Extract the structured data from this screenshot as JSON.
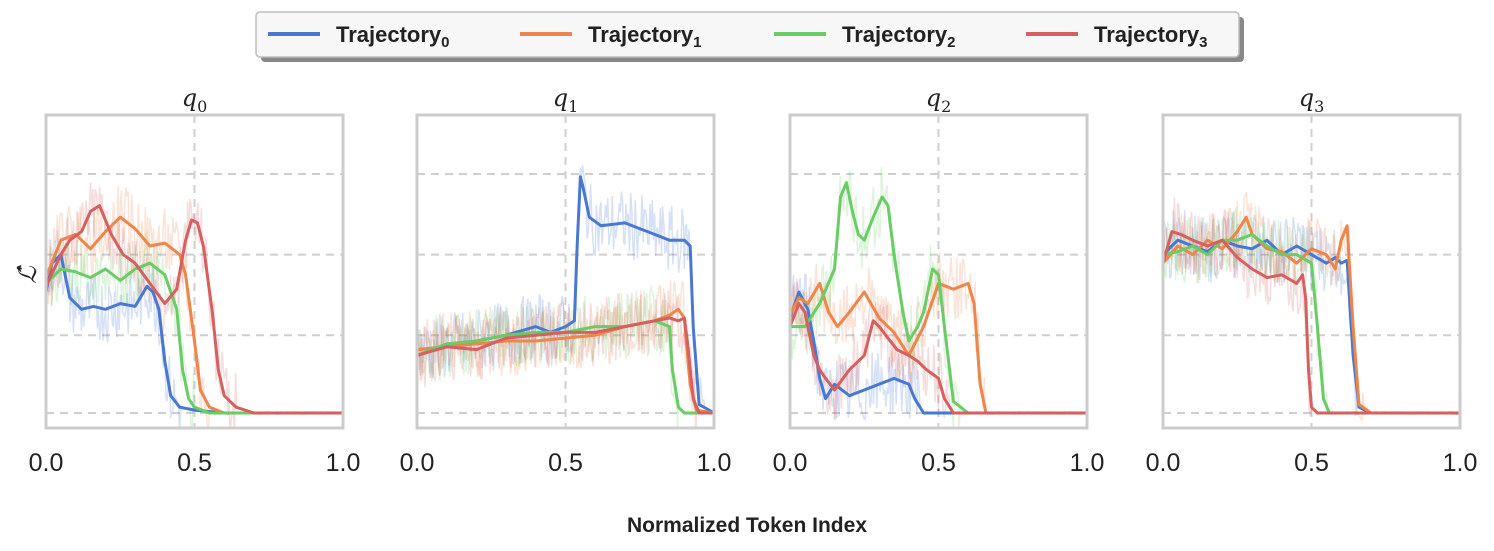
{
  "chart_data": {
    "type": "line",
    "x_axis_label": "Normalized Token Index",
    "y_axis_label": "ℒ̂",
    "x_ticks": [
      "0.0",
      "0.5",
      "1.0"
    ],
    "xlim": [
      0,
      1
    ],
    "ylim": [
      0,
      1
    ],
    "grid": "dashed",
    "legend": {
      "placement": "top-center",
      "entries": [
        {
          "base": "Trajectory",
          "sub": "0",
          "color": "#4878d0"
        },
        {
          "base": "Trajectory",
          "sub": "1",
          "color": "#ee854a"
        },
        {
          "base": "Trajectory",
          "sub": "2",
          "color": "#6acc64"
        },
        {
          "base": "Trajectory",
          "sub": "3",
          "color": "#d65f5f"
        }
      ]
    },
    "panels": [
      {
        "name": "q0",
        "title_base": "q",
        "title_sub": "0",
        "series": [
          {
            "name": "Trajectory0",
            "x": [
              0,
              0.02,
              0.05,
              0.08,
              0.12,
              0.16,
              0.2,
              0.25,
              0.3,
              0.34,
              0.36,
              0.38,
              0.4,
              0.42,
              0.45,
              0.5,
              0.6,
              0.8,
              1.0
            ],
            "y": [
              0.42,
              0.52,
              0.55,
              0.4,
              0.36,
              0.37,
              0.36,
              0.38,
              0.37,
              0.44,
              0.42,
              0.36,
              0.18,
              0.06,
              0.02,
              0.01,
              0.0,
              0.0,
              0.0
            ]
          },
          {
            "name": "Trajectory1",
            "x": [
              0,
              0.05,
              0.1,
              0.15,
              0.2,
              0.25,
              0.3,
              0.35,
              0.4,
              0.45,
              0.47,
              0.5,
              0.52,
              0.55,
              0.6,
              0.8,
              1.0
            ],
            "y": [
              0.47,
              0.6,
              0.62,
              0.57,
              0.63,
              0.68,
              0.64,
              0.58,
              0.59,
              0.55,
              0.48,
              0.25,
              0.08,
              0.02,
              0.0,
              0.0,
              0.0
            ]
          },
          {
            "name": "Trajectory2",
            "x": [
              0,
              0.05,
              0.1,
              0.15,
              0.2,
              0.25,
              0.3,
              0.35,
              0.4,
              0.44,
              0.46,
              0.48,
              0.5,
              0.55,
              0.6,
              0.8,
              1.0
            ],
            "y": [
              0.45,
              0.5,
              0.49,
              0.47,
              0.5,
              0.46,
              0.5,
              0.52,
              0.48,
              0.36,
              0.15,
              0.05,
              0.02,
              0.0,
              0.0,
              0.0,
              0.0
            ]
          },
          {
            "name": "Trajectory3",
            "x": [
              0,
              0.05,
              0.08,
              0.12,
              0.15,
              0.18,
              0.22,
              0.26,
              0.3,
              0.35,
              0.4,
              0.44,
              0.47,
              0.49,
              0.51,
              0.53,
              0.56,
              0.58,
              0.6,
              0.64,
              0.7,
              0.8,
              1.0
            ],
            "y": [
              0.44,
              0.55,
              0.6,
              0.63,
              0.7,
              0.72,
              0.62,
              0.55,
              0.52,
              0.45,
              0.38,
              0.43,
              0.6,
              0.67,
              0.66,
              0.58,
              0.35,
              0.15,
              0.06,
              0.02,
              0.0,
              0.0,
              0.0
            ]
          }
        ]
      },
      {
        "name": "q1",
        "title_base": "q",
        "title_sub": "1",
        "series": [
          {
            "name": "Trajectory0",
            "x": [
              0,
              0.1,
              0.2,
              0.3,
              0.4,
              0.45,
              0.5,
              0.53,
              0.54,
              0.55,
              0.56,
              0.58,
              0.62,
              0.7,
              0.8,
              0.85,
              0.9,
              0.92,
              0.93,
              0.95,
              1.0
            ],
            "y": [
              0.22,
              0.23,
              0.25,
              0.27,
              0.3,
              0.28,
              0.3,
              0.32,
              0.6,
              0.82,
              0.78,
              0.68,
              0.65,
              0.66,
              0.62,
              0.6,
              0.6,
              0.58,
              0.3,
              0.03,
              0.0
            ]
          },
          {
            "name": "Trajectory1",
            "x": [
              0,
              0.1,
              0.2,
              0.3,
              0.4,
              0.5,
              0.6,
              0.7,
              0.8,
              0.85,
              0.88,
              0.9,
              0.92,
              0.94,
              1.0
            ],
            "y": [
              0.22,
              0.23,
              0.24,
              0.25,
              0.25,
              0.26,
              0.27,
              0.3,
              0.32,
              0.34,
              0.36,
              0.33,
              0.1,
              0.01,
              0.0
            ]
          },
          {
            "name": "Trajectory2",
            "x": [
              0,
              0.1,
              0.2,
              0.3,
              0.4,
              0.5,
              0.6,
              0.7,
              0.8,
              0.85,
              0.86,
              0.88,
              0.9,
              1.0
            ],
            "y": [
              0.2,
              0.24,
              0.25,
              0.27,
              0.28,
              0.28,
              0.3,
              0.3,
              0.32,
              0.3,
              0.15,
              0.02,
              0.0,
              0.0
            ]
          },
          {
            "name": "Trajectory3",
            "x": [
              0,
              0.1,
              0.2,
              0.3,
              0.4,
              0.5,
              0.6,
              0.7,
              0.8,
              0.85,
              0.88,
              0.9,
              0.91,
              0.93,
              0.95,
              1.0
            ],
            "y": [
              0.2,
              0.23,
              0.22,
              0.26,
              0.27,
              0.28,
              0.28,
              0.3,
              0.32,
              0.33,
              0.32,
              0.33,
              0.25,
              0.05,
              0.0,
              0.0
            ]
          }
        ]
      },
      {
        "name": "q2",
        "title_base": "q",
        "title_sub": "2",
        "series": [
          {
            "name": "Trajectory0",
            "x": [
              0,
              0.03,
              0.06,
              0.08,
              0.1,
              0.12,
              0.15,
              0.2,
              0.25,
              0.3,
              0.35,
              0.4,
              0.42,
              0.45,
              0.5,
              1.0
            ],
            "y": [
              0.33,
              0.42,
              0.36,
              0.25,
              0.12,
              0.05,
              0.1,
              0.06,
              0.08,
              0.1,
              0.12,
              0.1,
              0.05,
              0.0,
              0.0,
              0.0
            ]
          },
          {
            "name": "Trajectory1",
            "x": [
              0,
              0.03,
              0.06,
              0.1,
              0.13,
              0.16,
              0.2,
              0.25,
              0.3,
              0.35,
              0.4,
              0.45,
              0.5,
              0.55,
              0.6,
              0.62,
              0.64,
              0.66,
              0.7,
              1.0
            ],
            "y": [
              0.34,
              0.4,
              0.38,
              0.45,
              0.35,
              0.3,
              0.35,
              0.42,
              0.33,
              0.28,
              0.2,
              0.3,
              0.45,
              0.43,
              0.45,
              0.38,
              0.1,
              0.0,
              0.0,
              0.0
            ]
          },
          {
            "name": "Trajectory2",
            "x": [
              0,
              0.05,
              0.1,
              0.15,
              0.17,
              0.19,
              0.21,
              0.23,
              0.25,
              0.28,
              0.31,
              0.33,
              0.35,
              0.38,
              0.4,
              0.43,
              0.45,
              0.48,
              0.5,
              0.52,
              0.55,
              0.6,
              1.0
            ],
            "y": [
              0.3,
              0.3,
              0.38,
              0.5,
              0.75,
              0.8,
              0.7,
              0.62,
              0.6,
              0.68,
              0.75,
              0.72,
              0.55,
              0.35,
              0.25,
              0.3,
              0.35,
              0.5,
              0.48,
              0.3,
              0.04,
              0.0,
              0.0
            ]
          },
          {
            "name": "Trajectory3",
            "x": [
              0,
              0.03,
              0.05,
              0.08,
              0.1,
              0.12,
              0.15,
              0.2,
              0.25,
              0.28,
              0.3,
              0.33,
              0.36,
              0.4,
              0.43,
              0.46,
              0.5,
              0.52,
              0.55,
              1.0
            ],
            "y": [
              0.3,
              0.38,
              0.35,
              0.2,
              0.15,
              0.12,
              0.08,
              0.15,
              0.2,
              0.32,
              0.3,
              0.26,
              0.22,
              0.2,
              0.18,
              0.15,
              0.12,
              0.05,
              0.0,
              0.0
            ]
          }
        ]
      },
      {
        "name": "q3",
        "title_base": "q",
        "title_sub": "3",
        "series": [
          {
            "name": "Trajectory0",
            "x": [
              0,
              0.05,
              0.1,
              0.15,
              0.2,
              0.25,
              0.3,
              0.35,
              0.4,
              0.45,
              0.5,
              0.55,
              0.58,
              0.6,
              0.62,
              0.64,
              0.66,
              0.7,
              1.0
            ],
            "y": [
              0.55,
              0.6,
              0.58,
              0.56,
              0.6,
              0.58,
              0.57,
              0.6,
              0.55,
              0.58,
              0.55,
              0.52,
              0.54,
              0.52,
              0.53,
              0.2,
              0.02,
              0.0,
              0.0
            ]
          },
          {
            "name": "Trajectory1",
            "x": [
              0,
              0.05,
              0.1,
              0.15,
              0.2,
              0.25,
              0.28,
              0.3,
              0.35,
              0.4,
              0.45,
              0.5,
              0.55,
              0.58,
              0.6,
              0.62,
              0.64,
              0.66,
              0.7,
              1.0
            ],
            "y": [
              0.52,
              0.58,
              0.55,
              0.6,
              0.57,
              0.63,
              0.68,
              0.62,
              0.57,
              0.56,
              0.52,
              0.57,
              0.55,
              0.5,
              0.6,
              0.65,
              0.3,
              0.03,
              0.0,
              0.0
            ]
          },
          {
            "name": "Trajectory2",
            "x": [
              0,
              0.05,
              0.1,
              0.15,
              0.2,
              0.25,
              0.3,
              0.35,
              0.4,
              0.45,
              0.5,
              0.52,
              0.54,
              0.56,
              0.6,
              1.0
            ],
            "y": [
              0.55,
              0.56,
              0.58,
              0.55,
              0.6,
              0.6,
              0.62,
              0.58,
              0.55,
              0.55,
              0.52,
              0.3,
              0.05,
              0.0,
              0.0,
              0.0
            ]
          },
          {
            "name": "Trajectory3",
            "x": [
              0,
              0.03,
              0.06,
              0.1,
              0.15,
              0.2,
              0.25,
              0.3,
              0.35,
              0.4,
              0.45,
              0.47,
              0.48,
              0.49,
              0.5,
              0.52,
              1.0
            ],
            "y": [
              0.52,
              0.63,
              0.62,
              0.6,
              0.58,
              0.6,
              0.54,
              0.5,
              0.47,
              0.48,
              0.45,
              0.48,
              0.4,
              0.15,
              0.02,
              0.0,
              0.0
            ]
          }
        ]
      }
    ]
  }
}
